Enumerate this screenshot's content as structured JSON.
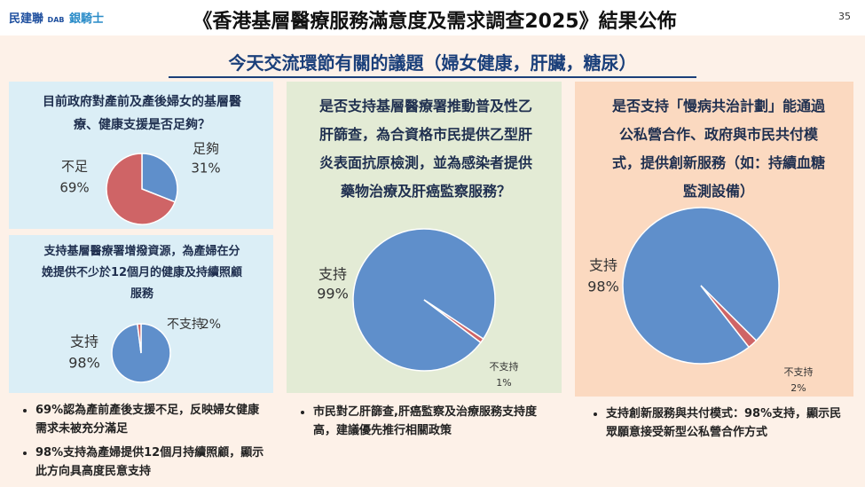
{
  "header": {
    "title": "《香港基層醫療服務滿意度及需求調查2025》結果公佈",
    "page_number": "35",
    "logo_left": "民建聯",
    "logo_left_sub": "DAB",
    "logo_right": "銀騎士"
  },
  "subtitle": "今天交流環節有關的議題（婦女健康，肝臟，糖尿）",
  "chart_data": [
    {
      "type": "pie",
      "title": "目前政府對產前及產後婦女的基層醫療、健康支援是否足夠？",
      "categories": [
        "足夠",
        "不足"
      ],
      "values": [
        31,
        69
      ],
      "value_labels": [
        "31%",
        "69%"
      ],
      "colors": [
        "#5f8fcb",
        "#cf6466"
      ]
    },
    {
      "type": "pie",
      "title": "支持基層醫療署增撥資源，為產婦在分娩提供不少於12個月的健康及持續照顧服務",
      "categories": [
        "支持",
        "不支持"
      ],
      "values": [
        98,
        2
      ],
      "value_labels": [
        "98%",
        "2%"
      ],
      "colors": [
        "#5f8fcb",
        "#cf6466"
      ]
    },
    {
      "type": "pie",
      "title": "是否支持基層醫療署推動普及性乙肝篩查，為合資格市民提供乙型肝炎表面抗原檢測，並為感染者提供藥物治療及肝癌監察服務？",
      "categories": [
        "支持",
        "不支持"
      ],
      "values": [
        99,
        1
      ],
      "value_labels": [
        "99%",
        "1%"
      ],
      "colors": [
        "#5f8fcb",
        "#cf6466"
      ]
    },
    {
      "type": "pie",
      "title": "是否支持「慢病共治計劃」能通過公私營合作、政府與市民共付模式，提供創新服務（如：持續血糖監測設備）",
      "categories": [
        "支持",
        "不支持"
      ],
      "values": [
        98,
        2
      ],
      "value_labels": [
        "98%",
        "2%"
      ],
      "colors": [
        "#5f8fcb",
        "#cf6466"
      ]
    }
  ],
  "bullets": {
    "left": [
      "69%認為產前產後支援不足，反映婦女健康需求未被充分滿足",
      "98%支持為產婦提供12個月持續照顧，顯示此方向具高度民意支持"
    ],
    "middle": [
      "市民對乙肝篩查,肝癌監察及治療服務支持度高，建議優先推行相關政策"
    ],
    "right": [
      "支持創新服務與共付模式：98%支持，顯示民眾願意接受新型公私營合作方式"
    ]
  }
}
